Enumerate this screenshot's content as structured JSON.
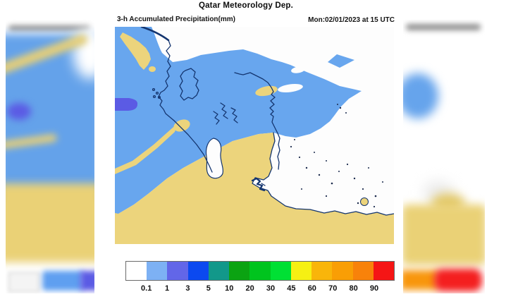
{
  "header": {
    "title": "Qatar Meteorology Dep.",
    "product": "3-h Accumulated Precipitation(mm)",
    "valid_time": "Mon:02/01/2023 at 15 UTC"
  },
  "legend": {
    "tick_labels": [
      "0.1",
      "1",
      "3",
      "5",
      "10",
      "20",
      "30",
      "45",
      "60",
      "70",
      "80",
      "90"
    ],
    "colors": [
      "#ffffff",
      "#7db1f4",
      "#6266e8",
      "#0b49f0",
      "#12988a",
      "#0ba312",
      "#00c41e",
      "#00e034",
      "#f6f013",
      "#f9b50a",
      "#f99e05",
      "#f8820a",
      "#f51515"
    ]
  },
  "map": {
    "colors": {
      "sea_no_precip": "#fdfdfd",
      "land_no_precip": "#ecd47c",
      "precip_light": "#68a6ee",
      "precip_moderate": "#5b5be4",
      "coastline": "#14356f",
      "speckle": "#1c2b4d"
    },
    "features": [
      "qatar-peninsula-coastline",
      "bahrain-contour",
      "precipitation-band-north",
      "dry-area-south",
      "light-precip-patch-west-edge"
    ]
  },
  "chart_data": {
    "type": "heatmap",
    "title": "3-h Accumulated Precipitation(mm)",
    "legend_bins_mm": [
      0.1,
      1,
      3,
      5,
      10,
      20,
      30,
      45,
      60,
      70,
      80,
      90
    ],
    "legend_colors": [
      "#ffffff",
      "#7db1f4",
      "#6266e8",
      "#0b49f0",
      "#12988a",
      "#0ba312",
      "#00c41e",
      "#00e034",
      "#f6f013",
      "#f9b50a",
      "#f99e05",
      "#f8820a",
      "#f51515"
    ],
    "depicted_values": "0.1-1 mm band over northern Qatar and Gulf, small 1-3 mm patch at western edge, dry elsewhere"
  }
}
